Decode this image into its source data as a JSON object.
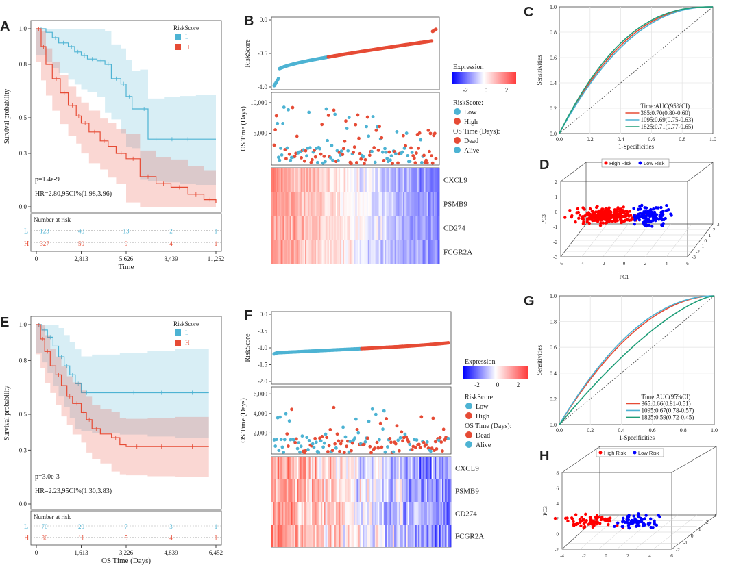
{
  "colors": {
    "blue": "#4db3d3",
    "red": "#e64b35",
    "green": "#1f9e78",
    "low": "#4db3d3",
    "high": "#e64b35",
    "pcaRed": "#ff0000",
    "pcaBlue": "#0000ff"
  },
  "chart_data": [
    {
      "id": "A",
      "type": "line",
      "panel_label": "A",
      "xlabel": "Time",
      "ylabel": "Survival probability",
      "xticks": [
        "0",
        "2,813",
        "5,626",
        "8,439",
        "11,252"
      ],
      "xlim": [
        0,
        11252
      ],
      "yticks": [
        "0.0",
        "0.3",
        "0.5",
        "0.8",
        "1.0"
      ],
      "ylim": [
        0,
        1
      ],
      "legend_title": "RiskScore",
      "series": [
        {
          "name": "L",
          "x": [
            0,
            600,
            1000,
            1400,
            2000,
            2400,
            2813,
            3200,
            3800,
            4300,
            4700,
            5300,
            5626,
            6000,
            6500,
            7000,
            8000,
            9000,
            10000,
            11252
          ],
          "y": [
            1.0,
            0.98,
            0.95,
            0.92,
            0.9,
            0.87,
            0.85,
            0.83,
            0.82,
            0.8,
            0.72,
            0.69,
            0.62,
            0.55,
            0.55,
            0.38,
            0.38,
            0.38,
            0.38,
            0.38
          ]
        },
        {
          "name": "H",
          "x": [
            0,
            300,
            600,
            1000,
            1500,
            2000,
            2500,
            2813,
            3300,
            4000,
            4500,
            5000,
            5626,
            6500,
            7500,
            8439,
            9500,
            10500,
            11252
          ],
          "y": [
            1.0,
            0.9,
            0.8,
            0.72,
            0.64,
            0.57,
            0.51,
            0.47,
            0.42,
            0.37,
            0.34,
            0.3,
            0.27,
            0.17,
            0.13,
            0.11,
            0.07,
            0.04,
            0.02
          ]
        }
      ],
      "annotations": [
        "p=1.4e-9",
        "HR=2.80,95CI%(1.98,3.96)"
      ],
      "risk_table": {
        "title": "Number at risk",
        "rows": [
          {
            "label": "L",
            "values": [
              "123",
              "48",
              "13",
              "2",
              "1"
            ]
          },
          {
            "label": "H",
            "values": [
              "327",
              "50",
              "9",
              "4",
              "1"
            ]
          }
        ]
      }
    },
    {
      "id": "B",
      "type": "scatter",
      "panel_label": "B",
      "score_ylabel": "RiskScore",
      "score_yticks": [
        "-1.0",
        "-0.5",
        "0.0"
      ],
      "score_ylim": [
        -1.0,
        0.0
      ],
      "time_ylabel": "OS Time (Days)",
      "time_yticks": [
        "5,000",
        "10,000"
      ],
      "time_ylim": [
        0,
        11000
      ],
      "genes": [
        "CXCL9",
        "PSMB9",
        "CD274",
        "FCGR2A"
      ],
      "n_samples": 450,
      "low_count": 150,
      "legend": {
        "expression_title": "Expression",
        "expression_ticks": [
          "-2",
          "0",
          "2"
        ],
        "risk_title": "RiskScore:",
        "risk_items": [
          "Low",
          "High"
        ],
        "status_title": "OS Time (Days):",
        "status_items": [
          "Dead",
          "Alive"
        ]
      }
    },
    {
      "id": "C",
      "type": "line",
      "panel_label": "C",
      "xlabel": "1-Specificities",
      "ylabel": "Sensitivities",
      "xticks": [
        "0.0",
        "0.2",
        "0.4",
        "0.6",
        "0.8",
        "1.0"
      ],
      "yticks": [
        "0.0",
        "0.2",
        "0.4",
        "0.6",
        "0.8",
        "1.0"
      ],
      "legend_title": "Time:AUC(95%CI)",
      "series": [
        {
          "name": "365:0.70(0.80-0.60)",
          "auc": 0.7
        },
        {
          "name": "1095:0.69(0.75-0.63)",
          "auc": 0.69
        },
        {
          "name": "1825:0.71(0.77-0.65)",
          "auc": 0.71
        }
      ]
    },
    {
      "id": "D",
      "type": "scatter",
      "panel_label": "D",
      "xlabel": "PC1",
      "ylabel": "PC3",
      "zlabel": "PC2",
      "xticks": [
        "-6",
        "-4",
        "-2",
        "0",
        "2",
        "4",
        "6"
      ],
      "zticks": [
        "-3",
        "-2",
        "-1",
        "0",
        "1",
        "2",
        "3"
      ],
      "yticks": [
        "-3",
        "-2",
        "-1",
        "0",
        "1",
        "2"
      ],
      "legend": [
        "High Risk",
        "Low Risk"
      ]
    },
    {
      "id": "E",
      "type": "line",
      "panel_label": "E",
      "xlabel": "OS Time (Days)",
      "ylabel": "Survival probability",
      "xticks": [
        "0",
        "1,613",
        "3,226",
        "4,839",
        "6,452"
      ],
      "xlim": [
        0,
        6452
      ],
      "yticks": [
        "0.0",
        "0.3",
        "0.5",
        "0.8",
        "1.0"
      ],
      "ylim": [
        0,
        1
      ],
      "legend_title": "RiskScore",
      "series": [
        {
          "name": "L",
          "x": [
            0,
            200,
            400,
            600,
            800,
            1000,
            1200,
            1400,
            1613,
            2000,
            3000,
            4000,
            5000,
            6200
          ],
          "y": [
            1.0,
            0.97,
            0.93,
            0.88,
            0.82,
            0.77,
            0.72,
            0.67,
            0.62,
            0.62,
            0.62,
            0.62,
            0.62,
            0.62
          ]
        },
        {
          "name": "H",
          "x": [
            0,
            150,
            300,
            500,
            700,
            900,
            1100,
            1300,
            1613,
            1800,
            2000,
            2300,
            2700,
            3000,
            3226,
            4000,
            5000,
            6200
          ],
          "y": [
            1.0,
            0.92,
            0.85,
            0.77,
            0.72,
            0.66,
            0.6,
            0.56,
            0.51,
            0.47,
            0.42,
            0.39,
            0.37,
            0.33,
            0.32,
            0.32,
            0.32,
            0.32
          ]
        }
      ],
      "annotations": [
        "p=3.0e-3",
        "HR=2.23,95CI%(1.30,3.83)"
      ],
      "risk_table": {
        "title": "Number at risk",
        "rows": [
          {
            "label": "L",
            "values": [
              "70",
              "20",
              "7",
              "3",
              "1"
            ]
          },
          {
            "label": "H",
            "values": [
              "80",
              "11",
              "5",
              "4",
              "1"
            ]
          }
        ]
      }
    },
    {
      "id": "F",
      "type": "scatter",
      "panel_label": "F",
      "score_ylabel": "RiskScore",
      "score_yticks": [
        "-2.0",
        "-1.5",
        "-1.0",
        "-0.5",
        "0.0"
      ],
      "score_ylim": [
        -2.0,
        0.0
      ],
      "time_ylabel": "OS Time (Days)",
      "time_yticks": [
        "2,000",
        "4,000",
        "6,000"
      ],
      "time_ylim": [
        0,
        6300
      ],
      "genes": [
        "CXCL9",
        "PSMB9",
        "CD274",
        "FCGR2A"
      ],
      "n_samples": 150,
      "low_count": 75,
      "legend": {
        "expression_title": "Expression",
        "expression_ticks": [
          "-2",
          "0",
          "2"
        ],
        "risk_title": "RiskScore:",
        "risk_items": [
          "Low",
          "High"
        ],
        "status_title": "OS Time (Days):",
        "status_items": [
          "Dead",
          "Alive"
        ]
      }
    },
    {
      "id": "G",
      "type": "line",
      "panel_label": "G",
      "xlabel": "1-Specificities",
      "ylabel": "Sensitivities",
      "xticks": [
        "0.0",
        "0.2",
        "0.4",
        "0.6",
        "0.8",
        "1.0"
      ],
      "yticks": [
        "0.0",
        "0.2",
        "0.4",
        "0.6",
        "0.8",
        "1.0"
      ],
      "legend_title": "Time:AUC(95%CI)",
      "series": [
        {
          "name": "365:0.66(0.81-0.51)",
          "auc": 0.66
        },
        {
          "name": "1095:0.67(0.78-0.57)",
          "auc": 0.67
        },
        {
          "name": "1825:0.59(0.72-0.45)",
          "auc": 0.59
        }
      ]
    },
    {
      "id": "H",
      "type": "scatter",
      "panel_label": "H",
      "xlabel": "PC1",
      "ylabel": "PC3",
      "zlabel": "PC2",
      "xticks": [
        "-4",
        "-2",
        "0",
        "2",
        "4",
        "6"
      ],
      "zticks": [
        "-2",
        "-1",
        "0",
        "1",
        "2",
        "3"
      ],
      "yticks": [
        "-2",
        "0",
        "2",
        "4",
        "6",
        "8"
      ],
      "legend": [
        "High Risk",
        "Low Risk"
      ]
    }
  ]
}
